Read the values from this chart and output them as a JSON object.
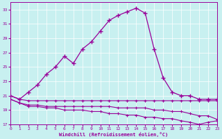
{
  "background_color": "#c8f0f0",
  "line_color": "#990099",
  "xlabel": "Windchill (Refroidissement éolien,°C)",
  "xlim": [
    0,
    23
  ],
  "ylim": [
    17,
    34
  ],
  "yticks": [
    17,
    19,
    21,
    23,
    25,
    27,
    29,
    31,
    33
  ],
  "xticks": [
    0,
    1,
    2,
    3,
    4,
    5,
    6,
    7,
    8,
    9,
    10,
    11,
    12,
    13,
    14,
    15,
    16,
    17,
    18,
    19,
    20,
    21,
    22,
    23
  ],
  "line1_y": [
    21.0,
    20.5,
    21.5,
    22.5,
    24.0,
    25.0,
    26.5,
    25.5,
    27.5,
    28.5,
    30.0,
    31.5,
    32.2,
    32.7,
    33.2,
    32.5,
    27.5,
    23.5,
    21.5,
    21.0,
    21.0,
    20.5,
    20.5,
    20.5
  ],
  "line2_y": [
    21.0,
    20.5,
    20.3,
    20.3,
    20.3,
    20.3,
    20.3,
    20.3,
    20.3,
    20.3,
    20.3,
    20.3,
    20.3,
    20.3,
    20.3,
    20.3,
    20.3,
    20.3,
    20.3,
    20.3,
    20.3,
    20.3,
    20.3,
    20.3
  ],
  "line3_y": [
    20.5,
    20.0,
    19.7,
    19.7,
    19.5,
    19.5,
    19.5,
    19.5,
    19.5,
    19.5,
    19.5,
    19.5,
    19.3,
    19.3,
    19.3,
    19.3,
    19.0,
    19.0,
    18.8,
    18.8,
    18.5,
    18.2,
    18.2,
    17.7
  ],
  "line4_y": [
    20.5,
    20.0,
    19.5,
    19.5,
    19.3,
    19.3,
    19.0,
    19.0,
    19.0,
    18.8,
    18.8,
    18.5,
    18.5,
    18.3,
    18.3,
    18.0,
    18.0,
    17.8,
    17.8,
    17.5,
    17.3,
    17.0,
    17.3,
    17.5
  ]
}
